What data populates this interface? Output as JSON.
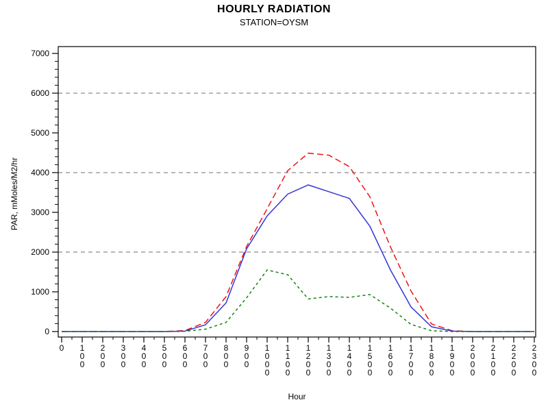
{
  "title": "HOURLY RADIATION",
  "subtitle": "STATION=OYSM",
  "chart_data": {
    "type": "line",
    "title": "HOURLY RADIATION",
    "subtitle": "STATION=OYSM",
    "xlabel": "Hour",
    "ylabel": "PAR, mMoles/M2/hr",
    "x": [
      0,
      100,
      200,
      300,
      400,
      500,
      600,
      700,
      800,
      900,
      1000,
      1100,
      1200,
      1300,
      1400,
      1500,
      1600,
      1700,
      1800,
      1900,
      2000,
      2100,
      2200,
      2300
    ],
    "x_tick_labels": [
      "0",
      "100",
      "200",
      "300",
      "400",
      "500",
      "600",
      "700",
      "800",
      "900",
      "1000",
      "1100",
      "1200",
      "1300",
      "1400",
      "1500",
      "1600",
      "1700",
      "1800",
      "1900",
      "2000",
      "2100",
      "2200",
      "2300"
    ],
    "ylim": [
      0,
      7000
    ],
    "y_ticks": [
      0,
      1000,
      2000,
      3000,
      4000,
      5000,
      6000,
      7000
    ],
    "y_minor_step": 200,
    "x_minor_per_interval": 1,
    "gridlines_y": [
      2000,
      4000,
      6000
    ],
    "grid_on": true,
    "grid_color": "#8c8c8c",
    "axis_color": "#000000",
    "legend": "none",
    "series": [
      {
        "name": "red-dashed-series",
        "color": "#ee1111",
        "style": "dashed",
        "values": [
          0,
          0,
          0,
          0,
          0,
          0,
          25,
          230,
          880,
          2140,
          3090,
          4050,
          4490,
          4440,
          4150,
          3390,
          2130,
          1020,
          190,
          20,
          0,
          0,
          0,
          0
        ]
      },
      {
        "name": "blue-solid-series",
        "color": "#3434d8",
        "style": "solid",
        "values": [
          0,
          0,
          0,
          0,
          0,
          0,
          10,
          170,
          720,
          2080,
          2910,
          3460,
          3690,
          3520,
          3350,
          2650,
          1550,
          620,
          120,
          10,
          0,
          0,
          0,
          0
        ]
      },
      {
        "name": "green-dashed-series",
        "color": "#0f840f",
        "style": "dashed-short",
        "values": [
          0,
          0,
          0,
          0,
          0,
          0,
          5,
          60,
          230,
          850,
          1550,
          1430,
          820,
          880,
          860,
          930,
          590,
          180,
          20,
          0,
          0,
          0,
          0,
          0
        ]
      }
    ]
  }
}
